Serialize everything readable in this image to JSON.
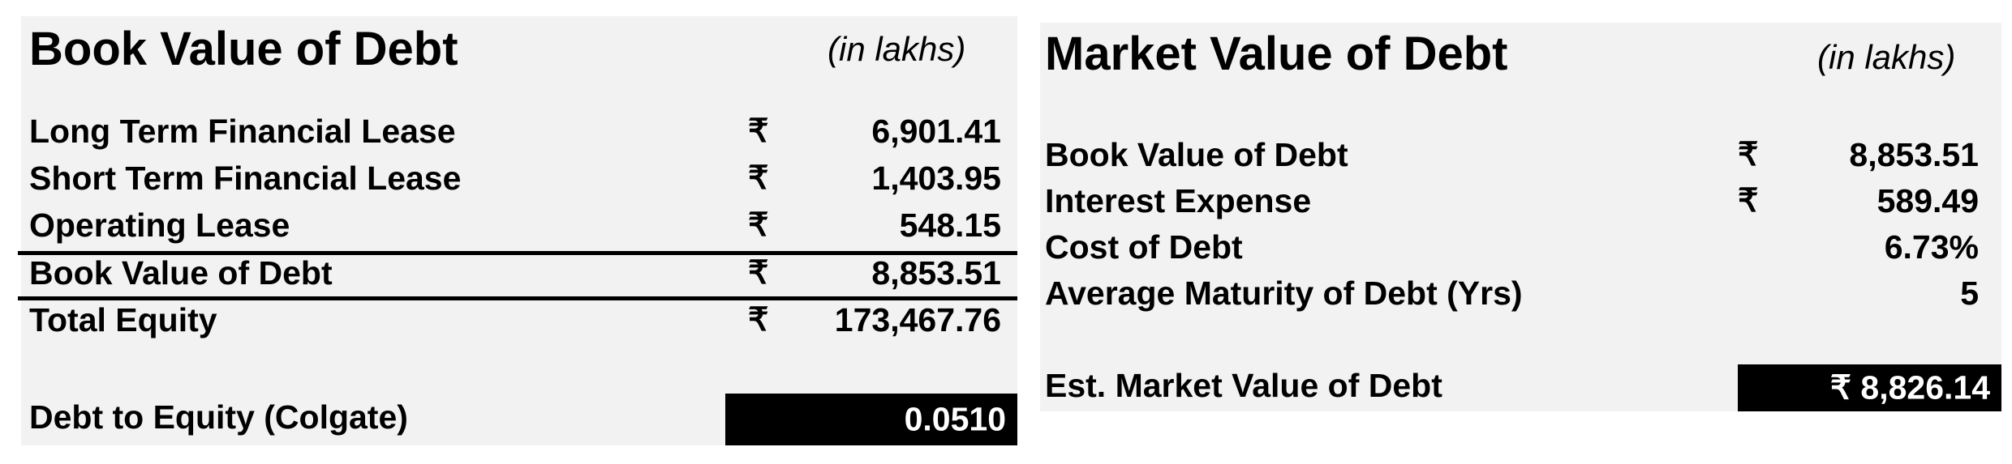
{
  "book_value_panel": {
    "title": "Book Value of Debt",
    "unit": "(in lakhs)",
    "rows": [
      {
        "label": "Long Term Financial Lease",
        "currency": "₹",
        "value": "6,901.41"
      },
      {
        "label": "Short Term Financial Lease",
        "currency": "₹",
        "value": "1,403.95"
      },
      {
        "label": "Operating Lease",
        "currency": "₹",
        "value": "548.15"
      },
      {
        "label": "Book Value of Debt",
        "currency": "₹",
        "value": "8,853.51"
      },
      {
        "label": "Total Equity",
        "currency": "₹",
        "value": "173,467.76"
      }
    ],
    "result": {
      "label": "Debt to Equity (Colgate)",
      "value": "0.0510"
    }
  },
  "market_value_panel": {
    "title": "Market Value of Debt",
    "unit": "(in lakhs)",
    "rows": [
      {
        "label": "Book Value of Debt",
        "currency": "₹",
        "value": "8,853.51"
      },
      {
        "label": "Interest Expense",
        "currency": "₹",
        "value": "589.49"
      },
      {
        "label": "Cost of Debt",
        "currency": "",
        "value": "6.73%"
      },
      {
        "label": "Average Maturity of Debt (Yrs)",
        "currency": "",
        "value": "5"
      }
    ],
    "result": {
      "label": "Est. Market Value of Debt",
      "value": "₹ 8,826.14"
    }
  }
}
